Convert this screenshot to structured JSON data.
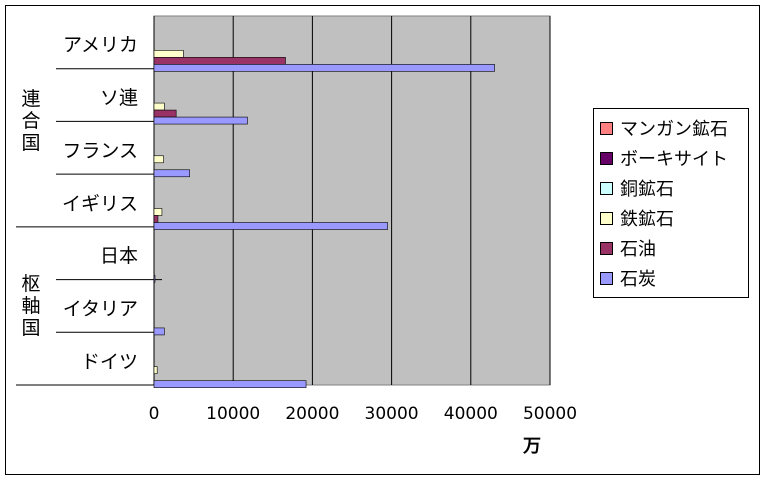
{
  "chart_data": {
    "type": "bar",
    "orientation": "horizontal",
    "groups": [
      {
        "label": "連合国",
        "categories": [
          "アメリカ",
          "ソ連",
          "フランス",
          "イギリス"
        ]
      },
      {
        "label": "枢軸国",
        "categories": [
          "日本",
          "イタリア",
          "ドイツ"
        ]
      }
    ],
    "categories": [
      "アメリカ",
      "ソ連",
      "フランス",
      "イギリス",
      "日本",
      "イタリア",
      "ドイツ"
    ],
    "series": [
      {
        "name": "マンガン鉱石",
        "color": "#ff8080",
        "values": [
          0,
          0,
          0,
          0,
          0,
          0,
          0
        ]
      },
      {
        "name": "ボーキサイト",
        "color": "#660066",
        "values": [
          0,
          0,
          0,
          0,
          0,
          0,
          0
        ]
      },
      {
        "name": "銅鉱石",
        "color": "#ccffff",
        "values": [
          0,
          0,
          0,
          0,
          0,
          0,
          0
        ]
      },
      {
        "name": "鉄鉱石",
        "color": "#ffffcc",
        "values": [
          3700,
          1300,
          1200,
          1000,
          0,
          0,
          400
        ]
      },
      {
        "name": "石油",
        "color": "#993366",
        "values": [
          16600,
          2800,
          0,
          500,
          0,
          0,
          0
        ]
      },
      {
        "name": "石炭",
        "color": "#9999ff",
        "values": [
          43000,
          11800,
          4500,
          29500,
          100,
          1300,
          19200
        ]
      }
    ],
    "xlim": [
      0,
      50000
    ],
    "xticks": [
      "0",
      "10000",
      "20000",
      "30000",
      "40000",
      "50000"
    ],
    "xlabel": "万",
    "legend_position": "right",
    "plot_background": "#c0c0c0",
    "grid": true
  }
}
